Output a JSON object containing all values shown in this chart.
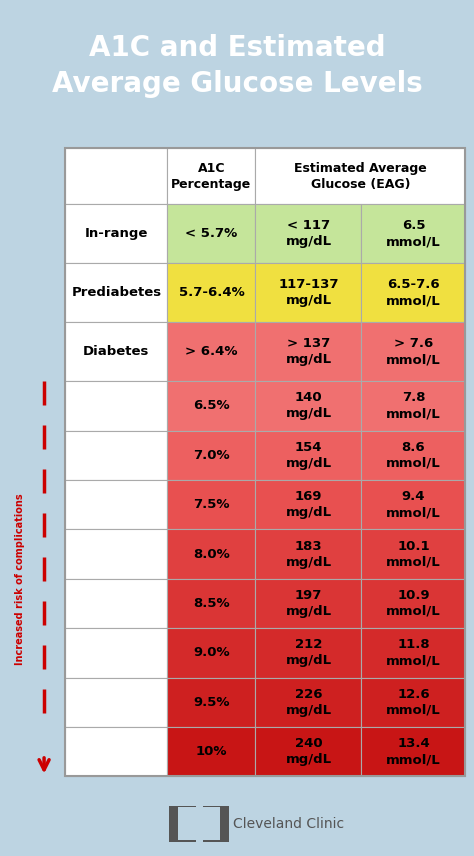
{
  "title": "A1C and Estimated\nAverage Glucose Levels",
  "title_bg": "#1E9BC8",
  "title_color": "#FFFFFF",
  "bg_color": "#BDD4E2",
  "footer_text": "Cleveland Clinic",
  "rows": [
    {
      "label": "In-range",
      "label_bold": true,
      "col1": "< 5.7%",
      "col2": "< 117\nmg/dL",
      "col3": "6.5\nmmol/L",
      "color": "#C5E59A",
      "text_color": "#000000",
      "label_color": "#000000"
    },
    {
      "label": "Prediabetes",
      "label_bold": true,
      "col1": "5.7-6.4%",
      "col2": "117-137\nmg/dL",
      "col3": "6.5-7.6\nmmol/L",
      "color": "#F0E040",
      "text_color": "#000000",
      "label_color": "#000000"
    },
    {
      "label": "Diabetes",
      "label_bold": true,
      "col1": "> 6.4%",
      "col2": "> 137\nmg/dL",
      "col3": "> 7.6\nmmol/L",
      "color": "#F07070",
      "text_color": "#000000",
      "label_color": "#000000"
    },
    {
      "label": "",
      "col1": "6.5%",
      "col2": "140\nmg/dL",
      "col3": "7.8\nmmol/L",
      "color": "#F07070",
      "text_color": "#000000",
      "label_color": "#000000"
    },
    {
      "label": "",
      "col1": "7.0%",
      "col2": "154\nmg/dL",
      "col3": "8.6\nmmol/L",
      "color": "#ED6060",
      "text_color": "#000000",
      "label_color": "#000000"
    },
    {
      "label": "",
      "col1": "7.5%",
      "col2": "169\nmg/dL",
      "col3": "9.4\nmmol/L",
      "color": "#E85050",
      "text_color": "#000000",
      "label_color": "#000000"
    },
    {
      "label": "",
      "col1": "8.0%",
      "col2": "183\nmg/dL",
      "col3": "10.1\nmmol/L",
      "color": "#E04040",
      "text_color": "#000000",
      "label_color": "#000000"
    },
    {
      "label": "",
      "col1": "8.5%",
      "col2": "197\nmg/dL",
      "col3": "10.9\nmmol/L",
      "color": "#DA3535",
      "text_color": "#000000",
      "label_color": "#000000"
    },
    {
      "label": "",
      "col1": "9.0%",
      "col2": "212\nmg/dL",
      "col3": "11.8\nmmol/L",
      "color": "#D42A2A",
      "text_color": "#000000",
      "label_color": "#000000"
    },
    {
      "label": "",
      "col1": "9.5%",
      "col2": "226\nmg/dL",
      "col3": "12.6\nmmol/L",
      "color": "#CE2020",
      "text_color": "#000000",
      "label_color": "#000000"
    },
    {
      "label": "",
      "col1": "10%",
      "col2": "240\nmg/dL",
      "col3": "13.4\nmmol/L",
      "color": "#C81515",
      "text_color": "#000000",
      "label_color": "#000000"
    }
  ],
  "arrow_label": "Increased risk of complications",
  "arrow_color": "#CC0000",
  "border_color": "#999999",
  "cell_border": "#AAAAAA"
}
